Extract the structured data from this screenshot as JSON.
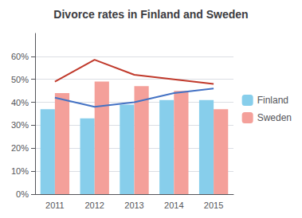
{
  "chart_data": {
    "type": "bar",
    "title": "Divorce rates in Finland and Sweden",
    "categories": [
      "2011",
      "2012",
      "2013",
      "2014",
      "2015"
    ],
    "series": [
      {
        "name": "Finland",
        "type": "bar",
        "color": "#87CEEB",
        "values": [
          0.37,
          0.33,
          0.39,
          0.41,
          0.41
        ]
      },
      {
        "name": "Sweden",
        "type": "bar",
        "color": "#F4A09A",
        "values": [
          0.44,
          0.49,
          0.47,
          0.45,
          0.37
        ]
      },
      {
        "type": "line",
        "color": "#4472C4",
        "values": [
          0.42,
          0.38,
          0.4,
          0.44,
          0.46
        ]
      },
      {
        "type": "line",
        "color": "#C0392B",
        "values": [
          0.49,
          0.585,
          0.52,
          0.5,
          0.48
        ]
      }
    ],
    "ylim": [
      0,
      0.7
    ],
    "yticks": [
      {
        "value": 0.0,
        "label": "0%"
      },
      {
        "value": 0.1,
        "label": "10%"
      },
      {
        "value": 0.2,
        "label": "20%"
      },
      {
        "value": 0.3,
        "label": "30%"
      },
      {
        "value": 0.4,
        "label": "40%"
      },
      {
        "value": 0.5,
        "label": "50%"
      },
      {
        "value": 0.6,
        "label": "60%"
      }
    ],
    "grid": true,
    "legend": "right"
  }
}
